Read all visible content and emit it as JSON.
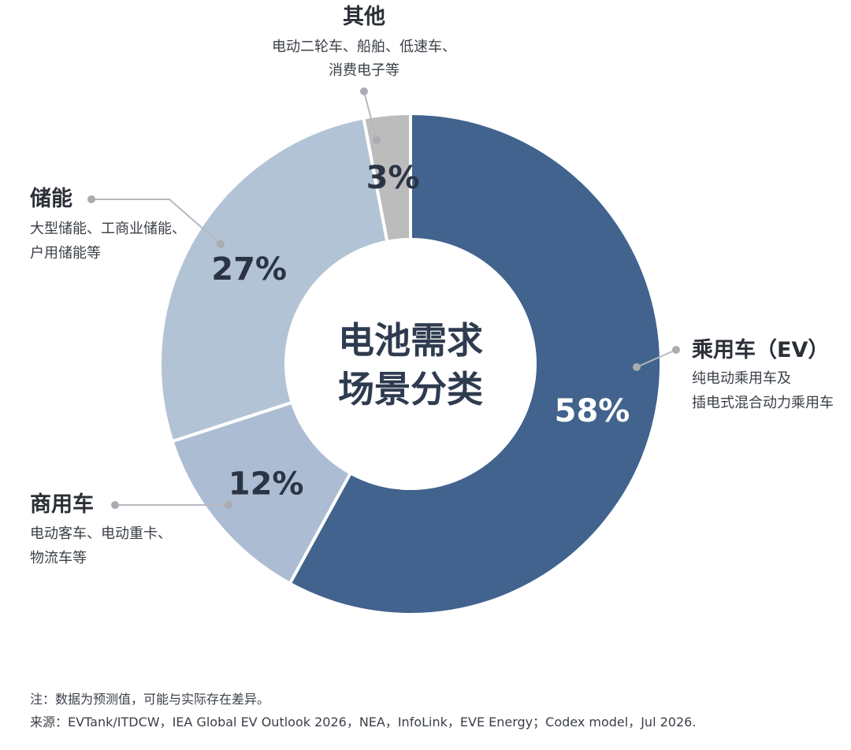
{
  "chart_data": {
    "type": "pie",
    "title": "电池需求场景分类",
    "title_lines": [
      "电池需求",
      "场景分类"
    ],
    "categories": [
      "乘用车（EV）",
      "商用车",
      "储能",
      "其他"
    ],
    "values": [
      58,
      12,
      27,
      3
    ],
    "value_labels": [
      "58%",
      "12%",
      "27%",
      "3%"
    ],
    "descriptions": [
      [
        "纯电动乘用车及",
        "插电式混合动力乘用车"
      ],
      [
        "电动客车、电动重卡、",
        "物流车等"
      ],
      [
        "大型储能、工商业储能、",
        "户用储能等"
      ],
      [
        "电动二轮车、船舶、低速车、",
        "消费电子等"
      ]
    ],
    "colors": [
      "#41638d",
      "#acbdd3",
      "#b3c3d6",
      "#bcbcbc"
    ],
    "label_colors": [
      "#ffffff",
      "#2b3444",
      "#2b3444",
      "#2b3444"
    ],
    "donut": true
  },
  "footnotes": {
    "note": "注：数据为预测值，可能与实际存在差异。",
    "source": "来源：EVTank/ITDCW，IEA Global EV Outlook 2026，NEA，InfoLink，EVE Energy；Codex model，Jul 2026."
  }
}
